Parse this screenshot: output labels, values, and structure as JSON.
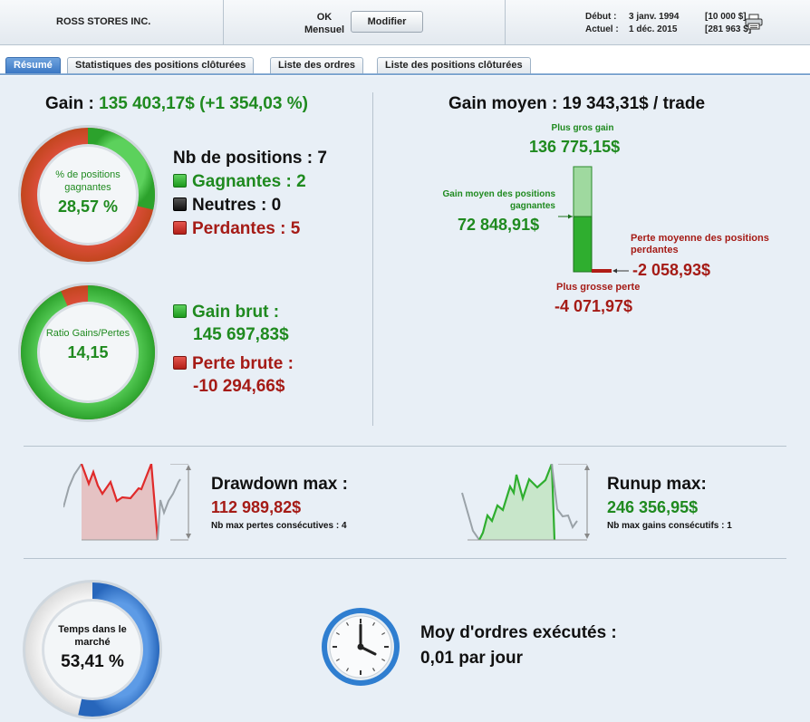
{
  "header": {
    "symbol": "ROSS STORES INC.",
    "ok_label": "OK",
    "period": "Mensuel",
    "modify_button": "Modifier",
    "start_label": "Début :",
    "start_date": "3 janv. 1994",
    "start_value": "[10 000 $]",
    "current_label": "Actuel :",
    "current_date": "1 déc. 2015",
    "current_value": "[281 963 $]",
    "print_icon": "printer-icon"
  },
  "tabs": [
    {
      "label": "Résumé",
      "active": true
    },
    {
      "label": "Statistiques des positions clôturées",
      "active": false
    },
    {
      "label": "Liste des ordres",
      "active": false
    },
    {
      "label": "Liste des positions clôturées",
      "active": false
    }
  ],
  "gain": {
    "label": "Gain :",
    "value": "135 403,17$ (+1 354,03 %)"
  },
  "win_ring": {
    "title": "% de positions gagnantes",
    "value": "28,57 %",
    "fraction": 0.2857
  },
  "positions": {
    "title": "Nb de positions : 7",
    "winners": "Gagnantes : 2",
    "neutral": "Neutres : 0",
    "losers": "Perdantes : 5"
  },
  "ratio_ring": {
    "title": "Ratio Gains/Pertes",
    "value": "14,15",
    "gain_fraction": 0.934
  },
  "gross": {
    "gain_label": "Gain brut :",
    "gain_value": "145 697,83$",
    "loss_label": "Perte brute :",
    "loss_value": "-10 294,66$"
  },
  "avg_gain": {
    "title": "Gain moyen : 19 343,31$ / trade",
    "largest_gain_label": "Plus gros gain",
    "largest_gain_value": "136 775,15$",
    "avg_win_label": "Gain moyen des positions gagnantes",
    "avg_win_value": "72 848,91$",
    "avg_loss_label": "Perte moyenne des positions perdantes",
    "avg_loss_value": "-2 058,93$",
    "largest_loss_label": "Plus grosse perte",
    "largest_loss_value": "-4 071,97$"
  },
  "drawdown": {
    "title": "Drawdown max :",
    "value": "112 989,82$",
    "sub": "Nb max pertes consécutives : 4"
  },
  "runup": {
    "title": "Runup max:",
    "value": "246 356,95$",
    "sub": "Nb max gains consécutifs : 1"
  },
  "market_time": {
    "title": "Temps dans le marché",
    "value": "53,41 %",
    "fraction": 0.5341
  },
  "orders": {
    "title": "Moy d'ordres exécutés :",
    "value": "0,01 par jour"
  },
  "colors": {
    "green": "#1f8a1f",
    "red": "#a51b16",
    "accent_blue": "#3a77c4"
  }
}
